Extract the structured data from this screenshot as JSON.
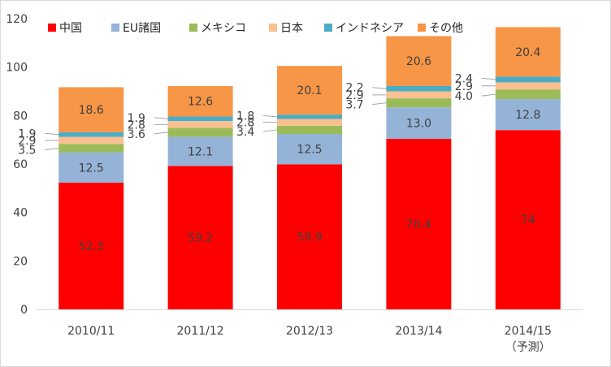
{
  "chart_data": {
    "type": "bar",
    "stacked": true,
    "title": "",
    "xlabel": "",
    "ylabel": "",
    "ylim": [
      0,
      120
    ],
    "yticks": [
      0,
      20,
      40,
      60,
      80,
      100,
      120
    ],
    "grid": false,
    "legend_position": "top",
    "categories": [
      [
        "2010/11"
      ],
      [
        "2011/12"
      ],
      [
        "2012/13"
      ],
      [
        "2013/14"
      ],
      [
        "2014/15",
        "（予測）"
      ]
    ],
    "series": [
      {
        "name": "中国",
        "color": "#ff0000",
        "values": [
          52.3,
          59.2,
          59.9,
          70.4,
          74
        ],
        "labels": [
          "52.3",
          "59.2",
          "59.9",
          "70.4",
          "74"
        ]
      },
      {
        "name": "EU諸国",
        "color": "#95b3d7",
        "values": [
          12.5,
          12.1,
          12.5,
          13.0,
          12.8
        ],
        "labels": [
          "12.5",
          "12.1",
          "12.5",
          "13.0",
          "12.8"
        ]
      },
      {
        "name": "メキシコ",
        "color": "#9bbb59",
        "values": [
          3.5,
          3.6,
          3.4,
          3.7,
          4.0
        ],
        "labels": [
          "3.5",
          "3.6",
          "3.4",
          "3.7",
          "4.0"
        ]
      },
      {
        "name": "日本",
        "color": "#fac090",
        "values": [
          2.9,
          2.8,
          2.8,
          2.9,
          2.9
        ],
        "labels": [
          "2.9",
          "2.8",
          "2.8",
          "2.9",
          "2.9"
        ]
      },
      {
        "name": "インドネシア",
        "color": "#4bacc6",
        "values": [
          1.9,
          1.9,
          1.8,
          2.2,
          2.4
        ],
        "labels": [
          "1.9",
          "1.9",
          "1.8",
          "2.2",
          "2.4"
        ]
      },
      {
        "name": "その他",
        "color": "#f79646",
        "values": [
          18.6,
          12.6,
          20.1,
          20.6,
          20.4
        ],
        "labels": [
          "18.6",
          "12.6",
          "20.1",
          "20.6",
          "20.4"
        ]
      }
    ]
  }
}
